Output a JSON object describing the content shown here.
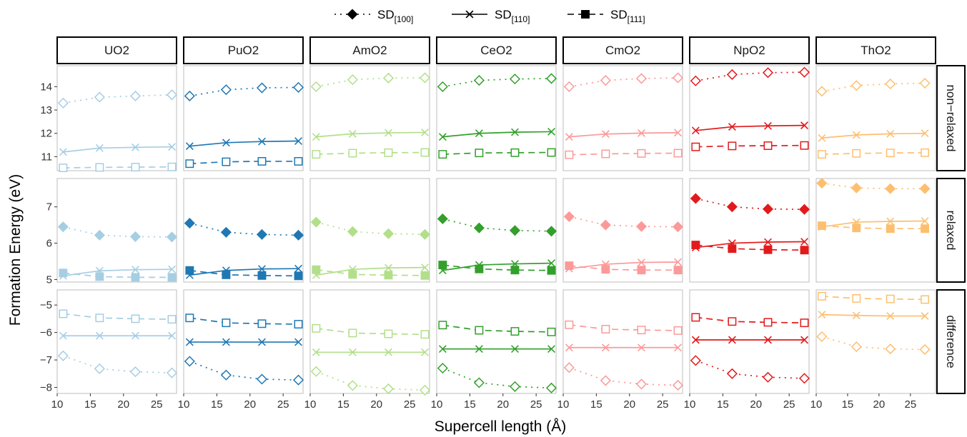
{
  "chart_data": {
    "type": "line",
    "xlabel": "Supercell length (Å)",
    "ylabel": "Formation Energy (eV)",
    "x": [
      10.9,
      16.4,
      21.8,
      27.3
    ],
    "x_tick_labels": [
      "10",
      "15",
      "20",
      "25"
    ],
    "legend": {
      "placement": "top",
      "entries": [
        {
          "key": "sd100",
          "prefix": "SD",
          "sub": "[100]",
          "linetype": "dotted",
          "marker": "diamond"
        },
        {
          "key": "sd110",
          "prefix": "SD",
          "sub": "[110]",
          "linetype": "solid",
          "marker": "cross"
        },
        {
          "key": "sd111",
          "prefix": "SD",
          "sub": "[111]",
          "linetype": "dashed",
          "marker": "square"
        }
      ]
    },
    "columns": [
      {
        "label": "UO2",
        "color": "#a6cee3",
        "xlim": [
          10,
          28
        ]
      },
      {
        "label": "PuO2",
        "color": "#1f78b4",
        "xlim": [
          10,
          28
        ]
      },
      {
        "label": "AmO2",
        "color": "#b2df8a",
        "xlim": [
          10,
          28
        ]
      },
      {
        "label": "CeO2",
        "color": "#33a02c",
        "xlim": [
          10,
          28
        ]
      },
      {
        "label": "CmO2",
        "color": "#fb9a99",
        "xlim": [
          10,
          28
        ]
      },
      {
        "label": "NpO2",
        "color": "#e31a1c",
        "xlim": [
          10,
          28
        ]
      },
      {
        "label": "ThO2",
        "color": "#fdbf6f",
        "xlim": [
          10,
          29
        ]
      }
    ],
    "rows": [
      {
        "label": "non−relaxed",
        "filled": false,
        "ylim": [
          10.4,
          14.9
        ],
        "yticks": [
          11,
          12,
          13,
          14
        ],
        "ytick_labels": [
          "11",
          "12",
          "13",
          "14"
        ],
        "series": {
          "sd100": [
            [
              13.3,
              13.55,
              13.6,
              13.65
            ],
            [
              13.6,
              13.87,
              13.95,
              13.97
            ],
            [
              14.0,
              14.3,
              14.37,
              14.38
            ],
            [
              14.0,
              14.27,
              14.33,
              14.35
            ],
            [
              14.0,
              14.27,
              14.35,
              14.38
            ],
            [
              14.25,
              14.52,
              14.6,
              14.62
            ],
            [
              13.8,
              14.05,
              14.12,
              14.15
            ]
          ],
          "sd110": [
            [
              11.2,
              11.37,
              11.4,
              11.42
            ],
            [
              11.45,
              11.6,
              11.65,
              11.67
            ],
            [
              11.85,
              11.98,
              12.02,
              12.04
            ],
            [
              11.85,
              12.0,
              12.05,
              12.07
            ],
            [
              11.85,
              11.97,
              12.01,
              12.03
            ],
            [
              12.12,
              12.28,
              12.32,
              12.34
            ],
            [
              11.8,
              11.93,
              11.98,
              12.0
            ]
          ],
          "sd111": [
            [
              10.52,
              10.54,
              10.55,
              10.56
            ],
            [
              10.7,
              10.78,
              10.8,
              10.8
            ],
            [
              11.1,
              11.15,
              11.17,
              11.18
            ],
            [
              11.1,
              11.16,
              11.17,
              11.18
            ],
            [
              11.08,
              11.12,
              11.14,
              11.15
            ],
            [
              11.42,
              11.46,
              11.47,
              11.48
            ],
            [
              11.1,
              11.14,
              11.16,
              11.17
            ]
          ]
        }
      },
      {
        "label": "relaxed",
        "filled": true,
        "ylim": [
          4.93,
          7.78
        ],
        "yticks": [
          5,
          6,
          7
        ],
        "ytick_labels": [
          "5",
          "6",
          "7"
        ],
        "series": {
          "sd100": [
            [
              6.45,
              6.22,
              6.18,
              6.17
            ],
            [
              6.55,
              6.3,
              6.24,
              6.22
            ],
            [
              6.58,
              6.32,
              6.26,
              6.24
            ],
            [
              6.67,
              6.42,
              6.35,
              6.33
            ],
            [
              6.73,
              6.5,
              6.46,
              6.45
            ],
            [
              7.23,
              7.0,
              6.94,
              6.93
            ],
            [
              7.65,
              7.52,
              7.5,
              7.5
            ]
          ],
          "sd110": [
            [
              5.1,
              5.24,
              5.27,
              5.28
            ],
            [
              5.12,
              5.25,
              5.29,
              5.3
            ],
            [
              5.12,
              5.28,
              5.32,
              5.33
            ],
            [
              5.25,
              5.4,
              5.43,
              5.45
            ],
            [
              5.3,
              5.42,
              5.47,
              5.48
            ],
            [
              5.88,
              6.0,
              6.03,
              6.04
            ],
            [
              6.45,
              6.58,
              6.6,
              6.61
            ]
          ],
          "sd111": [
            [
              5.18,
              5.08,
              5.06,
              5.06
            ],
            [
              5.25,
              5.13,
              5.11,
              5.1
            ],
            [
              5.27,
              5.14,
              5.12,
              5.11
            ],
            [
              5.4,
              5.29,
              5.26,
              5.25
            ],
            [
              5.38,
              5.28,
              5.26,
              5.26
            ],
            [
              5.95,
              5.85,
              5.82,
              5.81
            ],
            [
              6.48,
              6.42,
              6.4,
              6.4
            ]
          ]
        }
      },
      {
        "label": "difference",
        "filled": false,
        "ylim": [
          -8.22,
          -4.45
        ],
        "yticks": [
          -8,
          -7,
          -6,
          -5
        ],
        "ytick_labels": [
          "−8",
          "−7",
          "−6",
          "−5"
        ],
        "series": {
          "sd100": [
            [
              -6.85,
              -7.32,
              -7.43,
              -7.47
            ],
            [
              -7.05,
              -7.55,
              -7.7,
              -7.73
            ],
            [
              -7.42,
              -7.93,
              -8.05,
              -8.1
            ],
            [
              -7.3,
              -7.83,
              -7.97,
              -8.02
            ],
            [
              -7.28,
              -7.75,
              -7.88,
              -7.92
            ],
            [
              -7.02,
              -7.5,
              -7.63,
              -7.67
            ],
            [
              -6.15,
              -6.52,
              -6.6,
              -6.62
            ]
          ],
          "sd110": [
            [
              -6.12,
              -6.12,
              -6.12,
              -6.12
            ],
            [
              -6.35,
              -6.35,
              -6.35,
              -6.35
            ],
            [
              -6.72,
              -6.72,
              -6.72,
              -6.72
            ],
            [
              -6.6,
              -6.6,
              -6.6,
              -6.6
            ],
            [
              -6.55,
              -6.55,
              -6.55,
              -6.55
            ],
            [
              -6.27,
              -6.27,
              -6.27,
              -6.27
            ],
            [
              -5.35,
              -5.38,
              -5.4,
              -5.4
            ]
          ],
          "sd111": [
            [
              -5.32,
              -5.47,
              -5.5,
              -5.52
            ],
            [
              -5.47,
              -5.65,
              -5.68,
              -5.7
            ],
            [
              -5.85,
              -6.02,
              -6.05,
              -6.07
            ],
            [
              -5.73,
              -5.92,
              -5.96,
              -5.98
            ],
            [
              -5.72,
              -5.88,
              -5.91,
              -5.93
            ],
            [
              -5.45,
              -5.6,
              -5.63,
              -5.65
            ],
            [
              -4.68,
              -4.76,
              -4.78,
              -4.8
            ]
          ]
        }
      }
    ]
  }
}
